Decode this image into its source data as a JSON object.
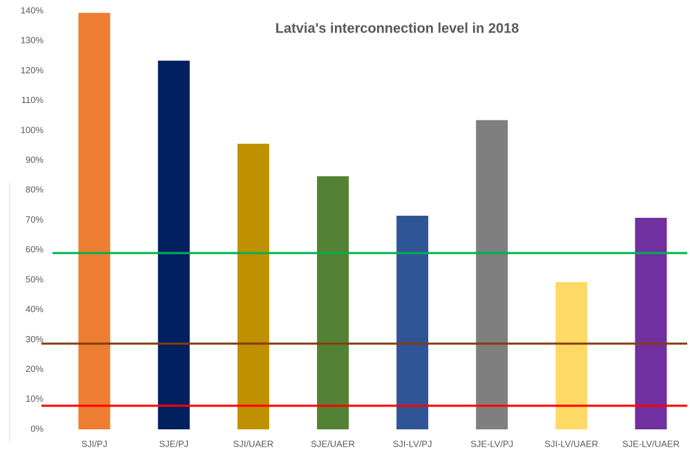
{
  "chart_data": {
    "type": "bar",
    "title": "Latvia's interconnection level in 2018",
    "categories": [
      "SJI/PJ",
      "SJE/PJ",
      "SJI/UAER",
      "SJE/UAER",
      "SJI-LV/PJ",
      "SJE-LV/PJ",
      "SJI-LV/UAER",
      "SJE-LV/UAER"
    ],
    "values": [
      139.4,
      123.4,
      95.6,
      84.7,
      71.5,
      103.5,
      49.3,
      70.8
    ],
    "colors": [
      "#ED7D31",
      "#002060",
      "#BF9000",
      "#548235",
      "#2F5597",
      "#7F7F7F",
      "#FFD966",
      "#7030A0"
    ],
    "ylim": [
      0,
      140
    ],
    "yticks": [
      {
        "value": 0,
        "label": "0%"
      },
      {
        "value": 10,
        "label": "10%"
      },
      {
        "value": 20,
        "label": "20%"
      },
      {
        "value": 30,
        "label": "30%"
      },
      {
        "value": 40,
        "label": "40%"
      },
      {
        "value": 50,
        "label": "50%"
      },
      {
        "value": 60,
        "label": "60%"
      },
      {
        "value": 70,
        "label": "70%"
      },
      {
        "value": 80,
        "label": "80%"
      },
      {
        "value": 90,
        "label": "90%"
      },
      {
        "value": 100,
        "label": "100%"
      },
      {
        "value": 110,
        "label": "110%"
      },
      {
        "value": 120,
        "label": "120%"
      },
      {
        "value": 130,
        "label": "130%"
      },
      {
        "value": 140,
        "label": "140%"
      }
    ],
    "reference_lines": [
      {
        "value": 59.0,
        "color": "#00B050"
      },
      {
        "value": 28.7,
        "color": "#843C0C"
      },
      {
        "value": 7.9,
        "color": "#FF0000"
      }
    ]
  }
}
